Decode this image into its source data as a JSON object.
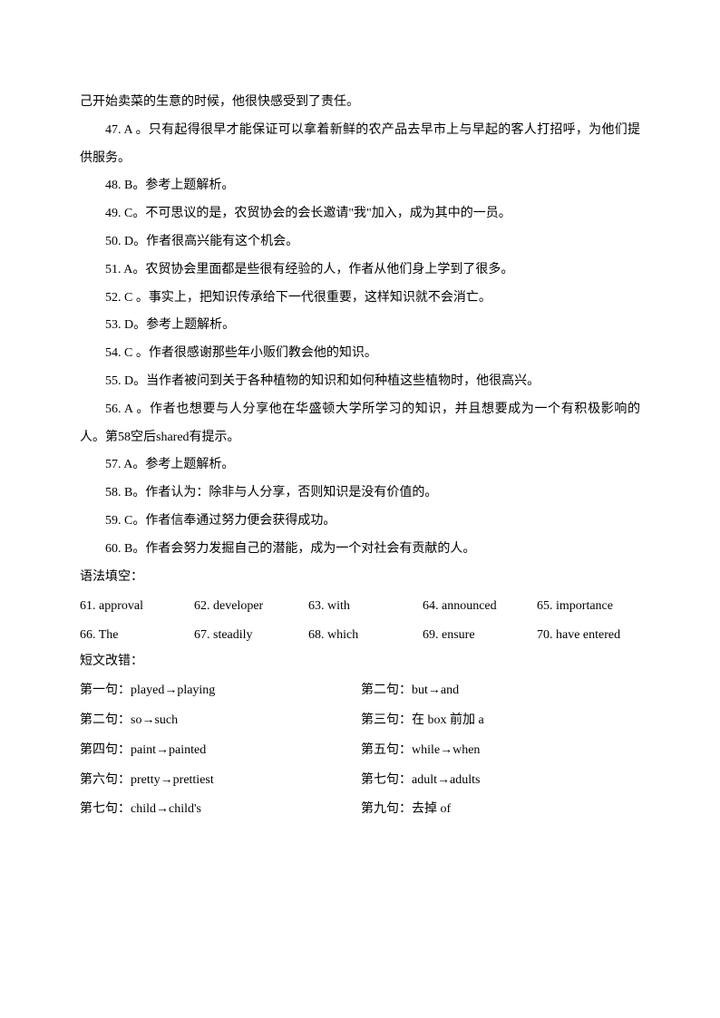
{
  "paragraphs": [
    "己开始卖菜的生意的时候，他很快感受到了责任。",
    "47. A 。只有起得很早才能保证可以拿着新鲜的农产品去早市上与早起的客人打招呼，为他们提供服务。",
    "48. B。参考上题解析。",
    "49. C。不可思议的是，农贸协会的会长邀请\"我\"加入，成为其中的一员。",
    "50. D。作者很高兴能有这个机会。",
    "51. A。农贸协会里面都是些很有经验的人，作者从他们身上学到了很多。",
    "52. C 。事实上，把知识传承给下一代很重要，这样知识就不会消亡。",
    "53. D。参考上题解析。",
    "54. C 。作者很感谢那些年小贩们教会他的知识。",
    "55. D。当作者被问到关于各种植物的知识和如何种植这些植物时，他很高兴。",
    "56. A 。作者也想要与人分享他在华盛顿大学所学习的知识，并且想要成为一个有积极影响的人。第58空后shared有提示。",
    "57. A。参考上题解析。",
    "58. B。作者认为：除非与人分享，否则知识是没有价值的。",
    "59. C。作者信奉通过努力便会获得成功。",
    "60. B。作者会努力发掘自己的潜能，成为一个对社会有贡献的人。"
  ],
  "section_grammar": "语法填空：",
  "grammar": [
    [
      "61. approval",
      "62. developer",
      "63. with",
      "64. announced",
      "65. importance"
    ],
    [
      "66. The",
      "67. steadily",
      "68. which",
      "69. ensure",
      "70. have entered"
    ]
  ],
  "section_correction": "短文改错：",
  "corrections": [
    [
      "第一句：played→playing",
      "第二句：but→and"
    ],
    [
      "第二句：so→such",
      "第三句：在 box 前加 a"
    ],
    [
      "第四句：paint→painted",
      "第五句：while→when"
    ],
    [
      "第六句：pretty→prettiest",
      "第七句：adult→adults"
    ],
    [
      "第七句：child→child's",
      "第九句：去掉 of"
    ]
  ]
}
